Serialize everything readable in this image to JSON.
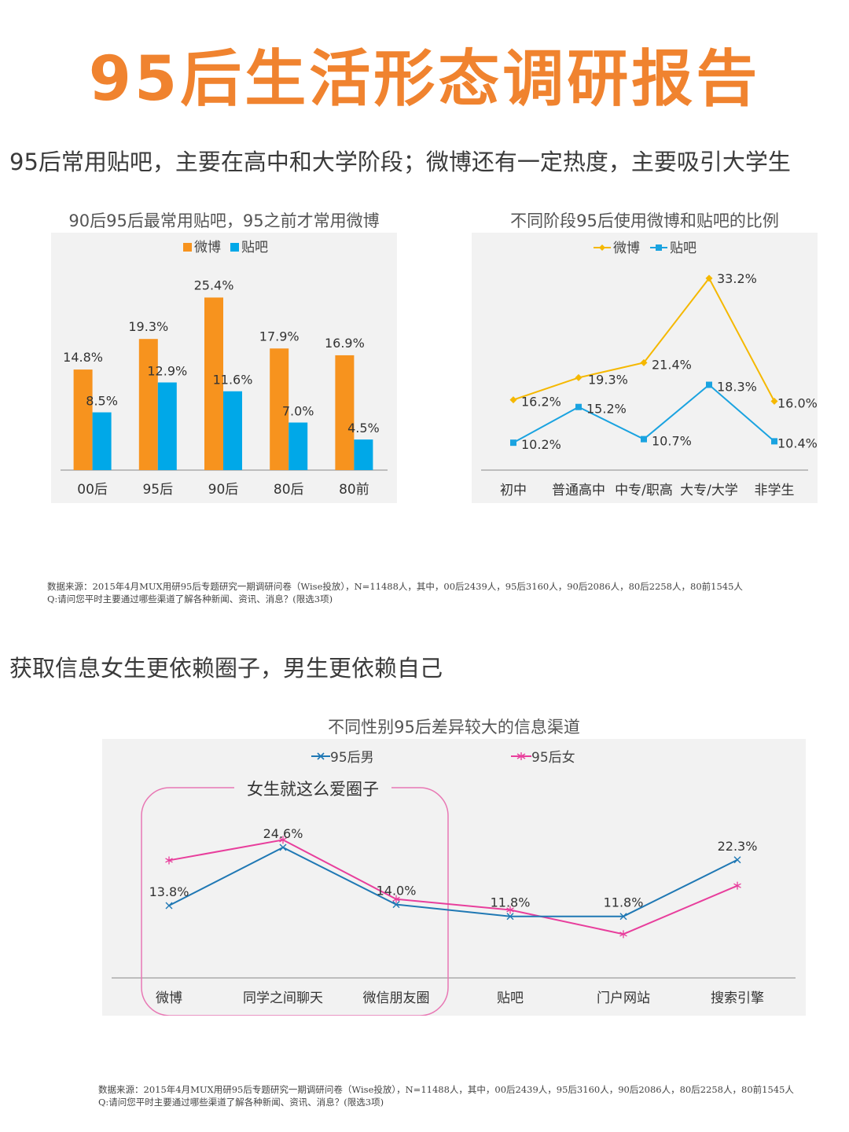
{
  "page": {
    "title": "95后生活形态调研报告",
    "section1_heading": "95后常用贴吧，主要在高中和大学阶段；微博还有一定热度，主要吸引大学生",
    "section2_heading": "获取信息女生更依赖圈子，男生更依赖自己",
    "source1_line1": "数据来源：2015年4月MUX用研95后专题研究一期调研问卷（Wise投放），N=11488人，其中，00后2439人，95后3160人，90后2086人，80后2258人，80前1545人",
    "source1_line2": "Q:请问您平时主要通过哪些渠道了解各种新闻、资讯、消息？(限选3项)",
    "source2_line1": "数据来源：2015年4月MUX用研95后专题研究一期调研问卷（Wise投放），N=11488人，其中，00后2439人，95后3160人，90后2086人，80后2258人，80前1545人",
    "source2_line2": "Q:请问您平时主要通过哪些渠道了解各种新闻、资讯、消息？(限选3项)",
    "annotation_box_label": "女生就这么爱圈子"
  },
  "colors": {
    "orange": "#f7931e",
    "blue": "#00a8e8",
    "yellow": "#f5b800",
    "line_blue": "#1aa3e0",
    "male": "#1f78b4",
    "female": "#e83e9c",
    "title": "#f0832f"
  },
  "chart_data": [
    {
      "type": "bar",
      "title": "90后95后最常用贴吧，95之前才常用微博",
      "categories": [
        "00后",
        "95后",
        "90后",
        "80后",
        "80前"
      ],
      "series": [
        {
          "name": "微博",
          "values": [
            14.8,
            19.3,
            25.4,
            17.9,
            16.9
          ],
          "labels": [
            "14.8%",
            "19.3%",
            "25.4%",
            "17.9%",
            "16.9%"
          ]
        },
        {
          "name": "贴吧",
          "values": [
            8.5,
            12.9,
            11.6,
            7.0,
            4.5
          ],
          "labels": [
            "8.5%",
            "12.9%",
            "11.6%",
            "7.0%",
            "4.5%"
          ]
        }
      ],
      "ylim": [
        0,
        28
      ],
      "legend": "top-center"
    },
    {
      "type": "line",
      "title": "不同阶段95后使用微博和贴吧的比例",
      "categories": [
        "初中",
        "普通高中",
        "中专/职高",
        "大专/大学",
        "非学生"
      ],
      "series": [
        {
          "name": "微博",
          "values": [
            16.2,
            19.3,
            21.4,
            33.2,
            16.0
          ],
          "labels": [
            "16.2%",
            "19.3%",
            "21.4%",
            "33.2%",
            "16.0%"
          ],
          "marker": "diamond"
        },
        {
          "name": "贴吧",
          "values": [
            10.2,
            15.2,
            10.7,
            18.3,
            10.4
          ],
          "labels": [
            "10.2%",
            "15.2%",
            "10.7%",
            "18.3%",
            "10.4%"
          ],
          "marker": "square"
        }
      ],
      "ylim": [
        5,
        36
      ],
      "legend": "top-center"
    },
    {
      "type": "line",
      "title": "不同性别95后差异较大的信息渠道",
      "categories": [
        "微博",
        "同学之间聊天",
        "微信朋友圈",
        "贴吧",
        "门户网站",
        "搜索引擎"
      ],
      "series": [
        {
          "name": "95后男",
          "values": [
            13.8,
            24.6,
            14.0,
            11.8,
            11.8,
            22.3
          ],
          "labels": [
            "13.8%",
            "24.6%",
            "14.0%",
            "11.8%",
            "11.8%",
            "22.3%"
          ],
          "marker": "x"
        },
        {
          "name": "95后女",
          "values": [
            22.2,
            26.0,
            15.0,
            13.0,
            8.5,
            17.5
          ],
          "labels": [
            "",
            "",
            "",
            "",
            "",
            ""
          ],
          "marker": "asterisk"
        }
      ],
      "ylim": [
        0,
        30
      ],
      "legend": "top"
    }
  ]
}
